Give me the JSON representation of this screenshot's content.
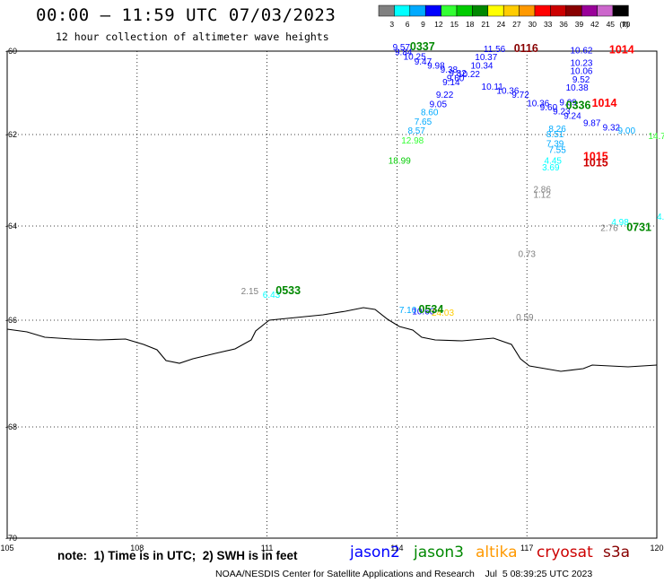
{
  "title": "00:00 – 11:59 UTC 07/03/2023",
  "subtitle": "12 hour collection of altimeter wave heights",
  "note": "note:  1) Time is in UTC;  2) SWH is in feet",
  "credit": "NOAA/NESDIS Center for Satellite Applications and Research    Jul  5 08:39:25 UTC 2023",
  "satellites": [
    {
      "name": "jason2",
      "color": "#0000ff"
    },
    {
      "name": "jason3",
      "color": "#008800"
    },
    {
      "name": "altika",
      "color": "#ff9900"
    },
    {
      "name": "cryosat",
      "color": "#cc0000"
    },
    {
      "name": "s3a",
      "color": "#880000"
    }
  ],
  "legend": {
    "unit": "(ft)",
    "bins": [
      {
        "label": "3",
        "color": "#808080"
      },
      {
        "label": "6",
        "color": "#00ffff"
      },
      {
        "label": "9",
        "color": "#00aaff"
      },
      {
        "label": "12",
        "color": "#0000ff"
      },
      {
        "label": "15",
        "color": "#33ff33"
      },
      {
        "label": "18",
        "color": "#00cc00"
      },
      {
        "label": "21",
        "color": "#008800"
      },
      {
        "label": "24",
        "color": "#ffff00"
      },
      {
        "label": "27",
        "color": "#ffcc00"
      },
      {
        "label": "30",
        "color": "#ff9900"
      },
      {
        "label": "33",
        "color": "#ff0000"
      },
      {
        "label": "36",
        "color": "#cc0000"
      },
      {
        "label": "39",
        "color": "#880000"
      },
      {
        "label": "42",
        "color": "#990099"
      },
      {
        "label": "45",
        "color": "#cc66cc"
      },
      {
        "label": "70",
        "color": "#000000"
      }
    ]
  },
  "axes": {
    "lon_ticks": [
      "105",
      "108",
      "111",
      "114",
      "117",
      "120"
    ],
    "lat_ticks": [
      "-60",
      "-62",
      "-64",
      "-66",
      "-68",
      "-70"
    ],
    "lon_range": [
      105,
      120
    ],
    "lat_range": [
      -60,
      -70
    ]
  },
  "time_labels": [
    {
      "text": "0337",
      "lon": 114.3,
      "lat": -59.98,
      "color": "#008800"
    },
    {
      "text": "0116",
      "lon": 116.7,
      "lat": -60.02,
      "color": "#880000"
    },
    {
      "text": "1014",
      "lon": 118.9,
      "lat": -60.05,
      "color": "#ff0000"
    },
    {
      "text": "1014",
      "lon": 118.5,
      "lat": -61.33,
      "color": "#ff0000"
    },
    {
      "text": "0336",
      "lon": 117.9,
      "lat": -61.39,
      "color": "#008800"
    },
    {
      "text": "1015",
      "lon": 118.3,
      "lat": -62.56,
      "color": "#ff0000"
    },
    {
      "text": "1015",
      "lon": 118.3,
      "lat": -62.7,
      "color": "#cc0000"
    },
    {
      "text": "0731",
      "lon": 119.3,
      "lat": -64.1,
      "color": "#008800"
    },
    {
      "text": "0533",
      "lon": 111.2,
      "lat": -65.45,
      "color": "#008800"
    },
    {
      "text": "0534",
      "lon": 114.5,
      "lat": -65.85,
      "color": "#008800"
    }
  ],
  "swh_points": [
    {
      "v": "9.57",
      "lon": 113.9,
      "lat": -59.98,
      "color": "#0000ff"
    },
    {
      "v": "9.84",
      "lon": 113.95,
      "lat": -60.1,
      "color": "#0000ff"
    },
    {
      "v": "10.25",
      "lon": 114.15,
      "lat": -60.2,
      "color": "#0000ff"
    },
    {
      "v": "9.47",
      "lon": 114.4,
      "lat": -60.32,
      "color": "#0000ff"
    },
    {
      "v": "9.98",
      "lon": 114.7,
      "lat": -60.42,
      "color": "#0000ff"
    },
    {
      "v": "9.38",
      "lon": 115.0,
      "lat": -60.52,
      "color": "#0000ff"
    },
    {
      "v": "9.82",
      "lon": 115.2,
      "lat": -60.6,
      "color": "#0000ff"
    },
    {
      "v": "9.60",
      "lon": 115.15,
      "lat": -60.72,
      "color": "#0000ff"
    },
    {
      "v": "9.14",
      "lon": 115.05,
      "lat": -60.82,
      "color": "#0000ff"
    },
    {
      "v": "9.22",
      "lon": 114.9,
      "lat": -61.12,
      "color": "#0000ff"
    },
    {
      "v": "9.05",
      "lon": 114.75,
      "lat": -61.34,
      "color": "#0000ff"
    },
    {
      "v": "8.60",
      "lon": 114.55,
      "lat": -61.54,
      "color": "#00aaff"
    },
    {
      "v": "7.65",
      "lon": 114.4,
      "lat": -61.76,
      "color": "#00aaff"
    },
    {
      "v": "8.57",
      "lon": 114.25,
      "lat": -61.98,
      "color": "#00aaff"
    },
    {
      "v": "12.98",
      "lon": 114.1,
      "lat": -62.2,
      "color": "#33ff33"
    },
    {
      "v": "18.99",
      "lon": 113.8,
      "lat": -62.64,
      "color": "#00cc00"
    },
    {
      "v": "11.56",
      "lon": 116.0,
      "lat": -60.02,
      "color": "#0000ff"
    },
    {
      "v": "10.37",
      "lon": 115.8,
      "lat": -60.22,
      "color": "#0000ff"
    },
    {
      "v": "10.34",
      "lon": 115.7,
      "lat": -60.42,
      "color": "#0000ff"
    },
    {
      "v": "10.22",
      "lon": 115.4,
      "lat": -60.62,
      "color": "#0000ff"
    },
    {
      "v": "10.11",
      "lon": 115.95,
      "lat": -60.92,
      "color": "#0000ff"
    },
    {
      "v": "10.36",
      "lon": 116.3,
      "lat": -61.02,
      "color": "#0000ff"
    },
    {
      "v": "9.72",
      "lon": 116.65,
      "lat": -61.12,
      "color": "#0000ff"
    },
    {
      "v": "10.36",
      "lon": 117.0,
      "lat": -61.32,
      "color": "#0000ff"
    },
    {
      "v": "9.60",
      "lon": 117.3,
      "lat": -61.42,
      "color": "#0000ff"
    },
    {
      "v": "9.23",
      "lon": 117.6,
      "lat": -61.52,
      "color": "#0000ff"
    },
    {
      "v": "9.09",
      "lon": 117.75,
      "lat": -61.3,
      "color": "#0000ff"
    },
    {
      "v": "9.24",
      "lon": 117.85,
      "lat": -61.62,
      "color": "#0000ff"
    },
    {
      "v": "9.87",
      "lon": 118.3,
      "lat": -61.8,
      "color": "#0000ff"
    },
    {
      "v": "9.32",
      "lon": 118.75,
      "lat": -61.9,
      "color": "#0000ff"
    },
    {
      "v": "9.00",
      "lon": 119.1,
      "lat": -61.98,
      "color": "#00aaff"
    },
    {
      "v": "14.7",
      "lon": 119.8,
      "lat": -62.1,
      "color": "#33ff33"
    },
    {
      "v": "10.62",
      "lon": 118.0,
      "lat": -60.05,
      "color": "#0000ff"
    },
    {
      "v": "10.23",
      "lon": 118.0,
      "lat": -60.35,
      "color": "#0000ff"
    },
    {
      "v": "10.06",
      "lon": 118.0,
      "lat": -60.55,
      "color": "#0000ff"
    },
    {
      "v": "9.52",
      "lon": 118.05,
      "lat": -60.75,
      "color": "#0000ff"
    },
    {
      "v": "10.38",
      "lon": 117.9,
      "lat": -60.95,
      "color": "#0000ff"
    },
    {
      "v": "8.26",
      "lon": 117.5,
      "lat": -61.94,
      "color": "#00aaff"
    },
    {
      "v": "8.51",
      "lon": 117.45,
      "lat": -62.06,
      "color": "#00aaff"
    },
    {
      "v": "7.39",
      "lon": 117.45,
      "lat": -62.26,
      "color": "#00aaff"
    },
    {
      "v": "7.55",
      "lon": 117.5,
      "lat": -62.4,
      "color": "#00aaff"
    },
    {
      "v": "4.45",
      "lon": 117.4,
      "lat": -62.64,
      "color": "#00ffff"
    },
    {
      "v": "3.69",
      "lon": 117.35,
      "lat": -62.78,
      "color": "#00ffff"
    },
    {
      "v": "2.86",
      "lon": 117.15,
      "lat": -63.26,
      "color": "#808080"
    },
    {
      "v": "1.12",
      "lon": 117.15,
      "lat": -63.38,
      "color": "#808080"
    },
    {
      "v": "4.98",
      "lon": 118.95,
      "lat": -63.98,
      "color": "#00ffff"
    },
    {
      "v": "4.8",
      "lon": 120.0,
      "lat": -63.86,
      "color": "#00ffff"
    },
    {
      "v": "2.76",
      "lon": 118.7,
      "lat": -64.1,
      "color": "#808080"
    },
    {
      "v": "0.73",
      "lon": 116.8,
      "lat": -64.66,
      "color": "#808080"
    },
    {
      "v": "0.59",
      "lon": 116.75,
      "lat": -66.0,
      "color": "#808080"
    },
    {
      "v": "2.15",
      "lon": 110.4,
      "lat": -65.45,
      "color": "#808080"
    },
    {
      "v": "6.43",
      "lon": 110.9,
      "lat": -65.52,
      "color": "#00ffff"
    },
    {
      "v": "7.10",
      "lon": 114.05,
      "lat": -65.85,
      "color": "#00aaff"
    },
    {
      "v": "10.60",
      "lon": 114.35,
      "lat": -65.88,
      "color": "#0000ff"
    },
    {
      "v": "24.03",
      "lon": 114.8,
      "lat": -65.9,
      "color": "#ffcc00"
    }
  ]
}
